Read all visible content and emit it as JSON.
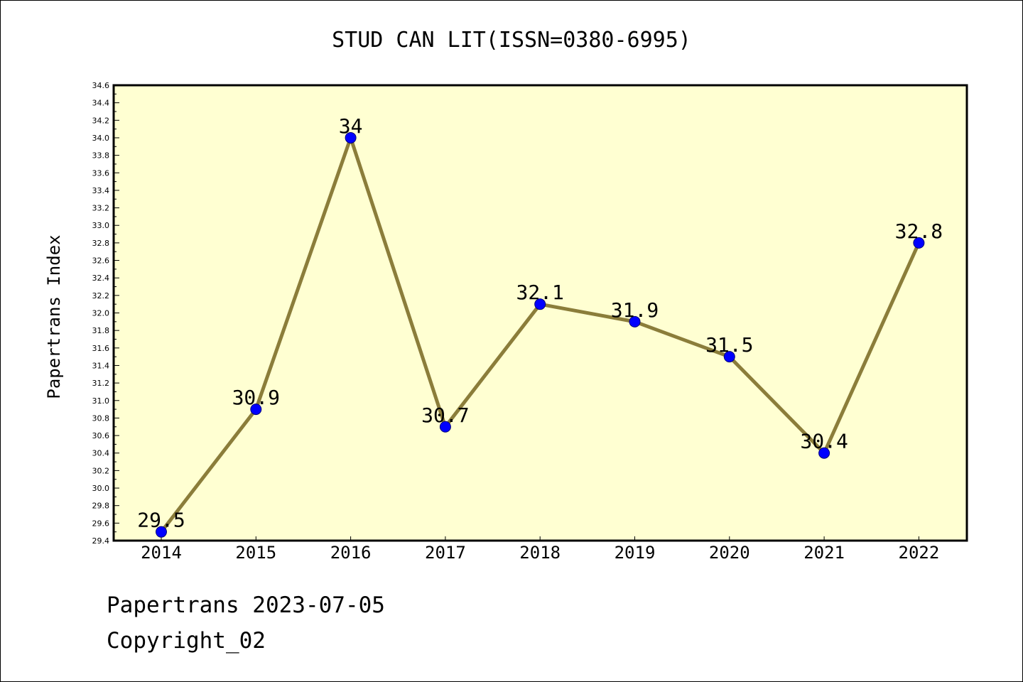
{
  "chart_data": {
    "type": "line",
    "title": "STUD CAN LIT(ISSN=0380-6995)",
    "xlabel": "",
    "ylabel": "Papertrans Index",
    "categories": [
      "2014",
      "2015",
      "2016",
      "2017",
      "2018",
      "2019",
      "2020",
      "2021",
      "2022"
    ],
    "series": [
      {
        "values": [
          29.5,
          30.9,
          34,
          30.7,
          32.1,
          31.9,
          31.5,
          30.4,
          32.8
        ],
        "labels": [
          "29.5",
          "30.9",
          "34",
          "30.7",
          "32.1",
          "31.9",
          "31.5",
          "30.4",
          "32.8"
        ]
      }
    ],
    "ylim": [
      29.4,
      34.6
    ],
    "yticks": [
      "29.4",
      "29.6",
      "29.8",
      "30.0",
      "30.2",
      "30.4",
      "30.6",
      "30.8",
      "31.0",
      "31.2",
      "31.4",
      "31.6",
      "31.8",
      "32.0",
      "32.2",
      "32.4",
      "32.6",
      "32.8",
      "33.0",
      "33.2",
      "33.4",
      "33.6",
      "33.8",
      "34.0",
      "34.2",
      "34.4",
      "34.6"
    ],
    "grid": false,
    "line_color": "#8b7d3a",
    "marker_color": "#0000ff",
    "plot_background": "#ffffd2"
  },
  "footer": {
    "line1": "Papertrans 2023-07-05",
    "line2": "Copyright_02"
  }
}
